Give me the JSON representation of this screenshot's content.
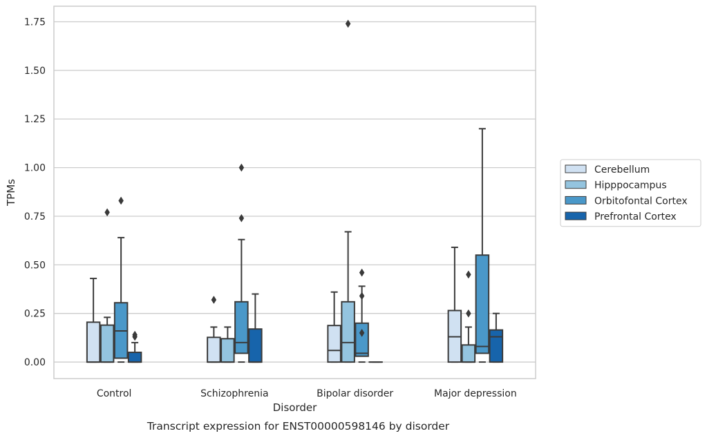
{
  "caption": "Transcript expression for ENST00000598146 by disorder",
  "colors": {
    "Cerebellum": "#d0e1f2",
    "Hipppocampus": "#94c4df",
    "Orbitofontal Cortex": "#4a98c9",
    "Prefrontal Cortex": "#1764ab",
    "edge": "#3a3a3a",
    "grid": "#cccccc"
  },
  "chart_data": {
    "type": "boxplot",
    "xlabel": "Disorder",
    "ylabel": "TPMs",
    "ylim": [
      -0.085,
      1.83
    ],
    "yticks": [
      0.0,
      0.25,
      0.5,
      0.75,
      1.0,
      1.25,
      1.5,
      1.75
    ],
    "ytick_labels": [
      "0.00",
      "0.25",
      "0.50",
      "0.75",
      "1.00",
      "1.25",
      "1.50",
      "1.75"
    ],
    "grid": "horizontal",
    "legend_position": "right",
    "categories": [
      "Control",
      "Schizophrenia",
      "Bipolar disorder",
      "Major depression"
    ],
    "series": [
      {
        "name": "Cerebellum",
        "boxes": [
          {
            "whislo": 0.0,
            "q1": 0.0,
            "med": 0.0,
            "q3": 0.205,
            "whishi": 0.43,
            "fliers": []
          },
          {
            "whislo": 0.0,
            "q1": 0.0,
            "med": 0.0,
            "q3": 0.127,
            "whishi": 0.18,
            "fliers": [
              0.32
            ]
          },
          {
            "whislo": 0.0,
            "q1": 0.0,
            "med": 0.06,
            "q3": 0.188,
            "whishi": 0.36,
            "fliers": []
          },
          {
            "whislo": 0.0,
            "q1": 0.0,
            "med": 0.13,
            "q3": 0.265,
            "whishi": 0.59,
            "fliers": []
          }
        ]
      },
      {
        "name": "Hipppocampus",
        "boxes": [
          {
            "whislo": 0.0,
            "q1": 0.0,
            "med": 0.0,
            "q3": 0.19,
            "whishi": 0.23,
            "fliers": [
              0.77
            ]
          },
          {
            "whislo": 0.0,
            "q1": 0.0,
            "med": 0.0,
            "q3": 0.12,
            "whishi": 0.18,
            "fliers": []
          },
          {
            "whislo": 0.0,
            "q1": 0.0,
            "med": 0.1,
            "q3": 0.31,
            "whishi": 0.67,
            "fliers": [
              1.74
            ]
          },
          {
            "whislo": 0.0,
            "q1": 0.0,
            "med": 0.0,
            "q3": 0.088,
            "whishi": 0.18,
            "fliers": [
              0.25,
              0.45
            ]
          }
        ]
      },
      {
        "name": "Orbitofontal Cortex",
        "boxes": [
          {
            "whislo": 0.0,
            "q1": 0.02,
            "med": 0.16,
            "q3": 0.305,
            "whishi": 0.64,
            "fliers": [
              0.83
            ]
          },
          {
            "whislo": 0.0,
            "q1": 0.045,
            "med": 0.1,
            "q3": 0.31,
            "whishi": 0.63,
            "fliers": [
              0.74,
              1.0
            ]
          },
          {
            "whislo": 0.0,
            "q1": 0.03,
            "med": 0.045,
            "q3": 0.2,
            "whishi": 0.39,
            "fliers": [
              0.15,
              0.34,
              0.46
            ]
          },
          {
            "whislo": 0.0,
            "q1": 0.045,
            "med": 0.08,
            "q3": 0.55,
            "whishi": 1.2,
            "fliers": []
          }
        ]
      },
      {
        "name": "Prefrontal Cortex",
        "boxes": [
          {
            "whislo": 0.0,
            "q1": 0.0,
            "med": 0.0,
            "q3": 0.05,
            "whishi": 0.1,
            "fliers": [
              0.13,
              0.14
            ]
          },
          {
            "whislo": 0.0,
            "q1": 0.0,
            "med": 0.0,
            "q3": 0.17,
            "whishi": 0.35,
            "fliers": []
          },
          {
            "whislo": 0.0,
            "q1": 0.0,
            "med": 0.0,
            "q3": 0.0,
            "whishi": 0.0,
            "fliers": []
          },
          {
            "whislo": 0.0,
            "q1": 0.0,
            "med": 0.13,
            "q3": 0.165,
            "whishi": 0.25,
            "fliers": []
          }
        ]
      }
    ]
  }
}
